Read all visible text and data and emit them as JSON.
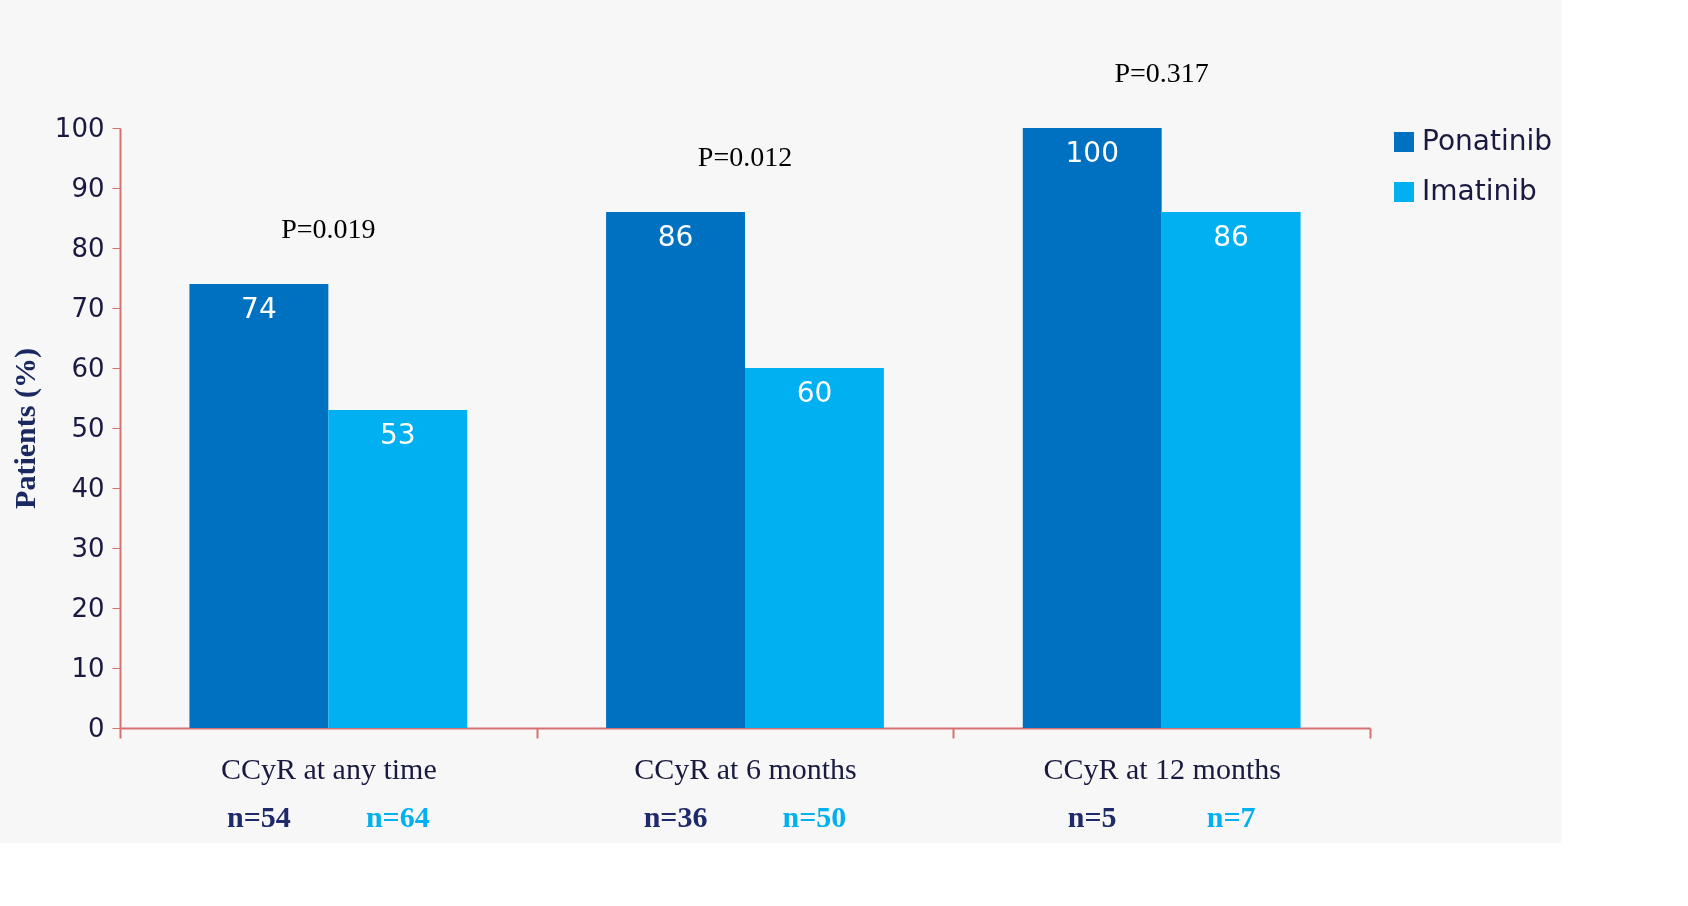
{
  "chart_data": {
    "type": "bar",
    "ylabel": "Patients (%)",
    "categories": [
      "CCyR at any time",
      "CCyR at 6 months",
      "CCyR at 12 months"
    ],
    "series": [
      {
        "name": "Ponatinib",
        "color": "#0070c0",
        "values": [
          74,
          86,
          100
        ]
      },
      {
        "name": "Imatinib",
        "color": "#00b0f0",
        "values": [
          53,
          60,
          86
        ]
      }
    ],
    "ylim": [
      0,
      100
    ],
    "yticks": [
      0,
      10,
      20,
      30,
      40,
      50,
      60,
      70,
      80,
      90,
      100
    ],
    "data_labels": true,
    "grid": false,
    "legend": "right",
    "annotations": [
      "P=0.019",
      "P=0.012",
      "P=0.317",
      "n=54",
      "n=64",
      "n=36",
      "n=50",
      "n=5",
      "n=7"
    ]
  }
}
